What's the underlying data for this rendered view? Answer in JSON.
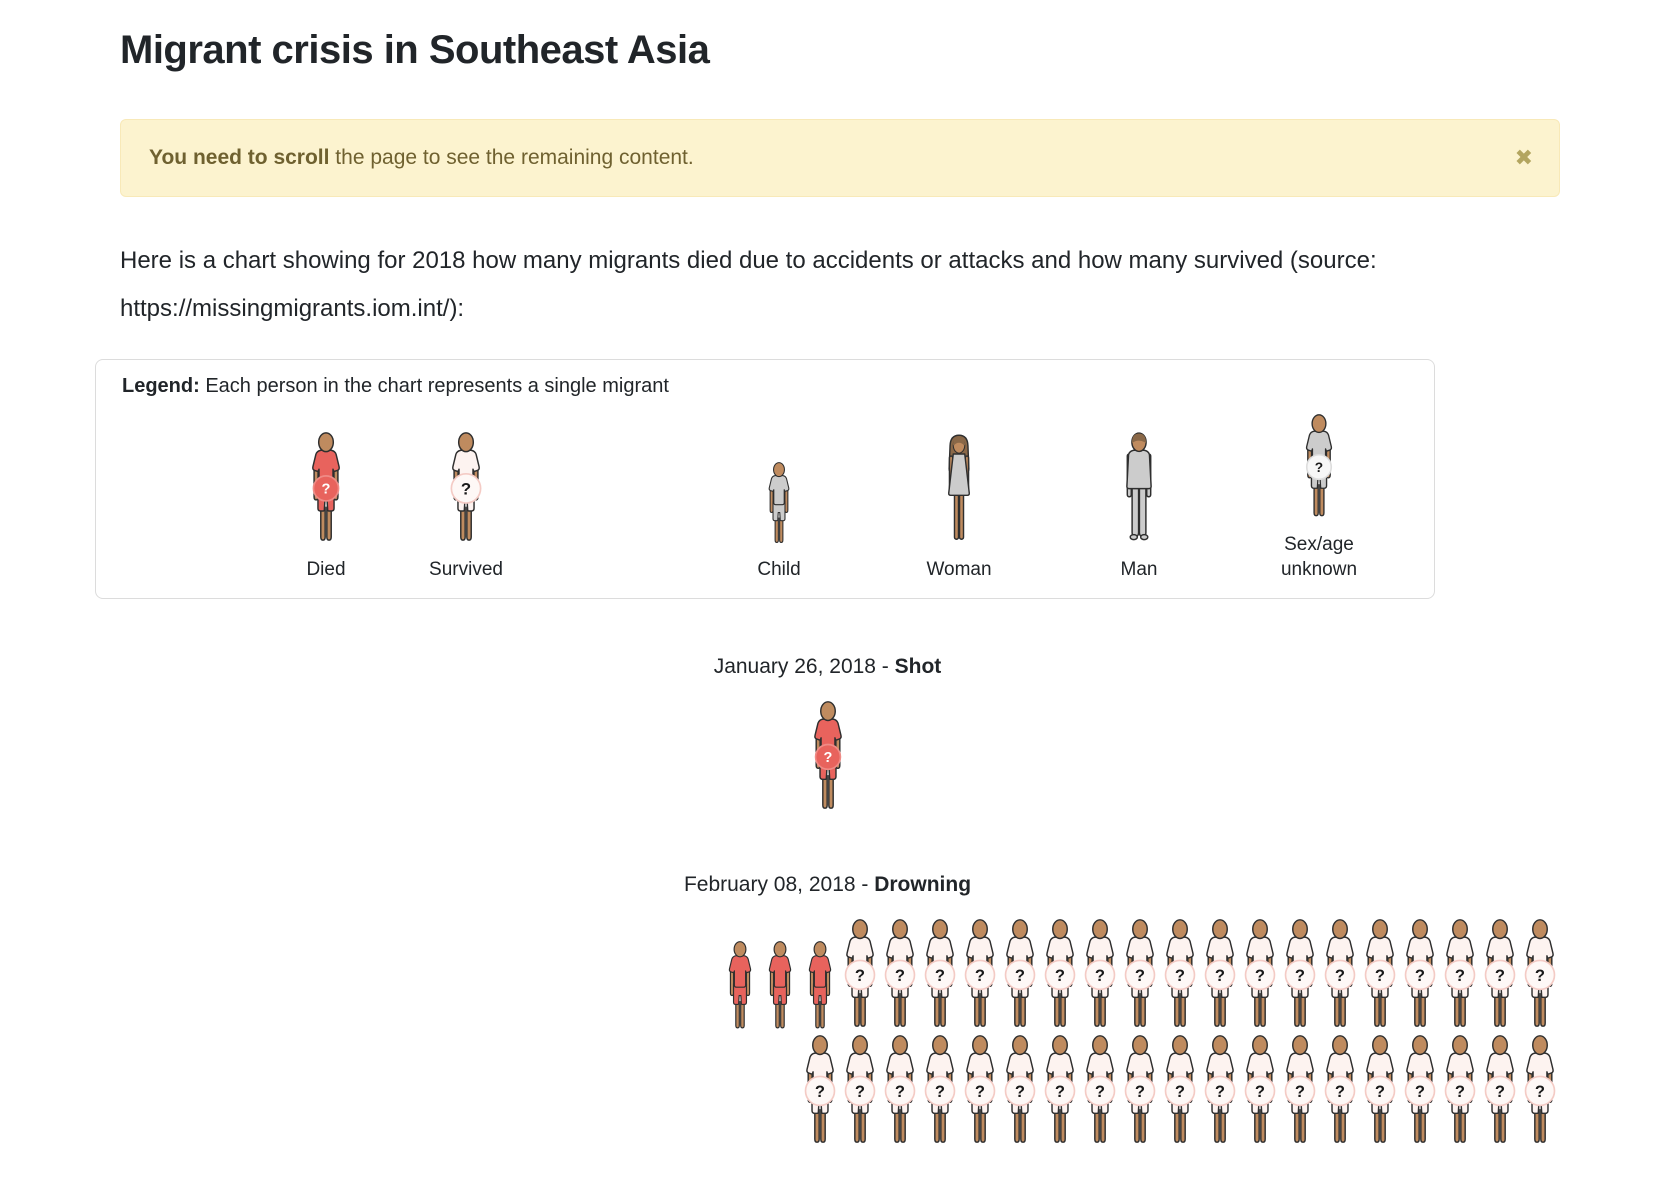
{
  "page": {
    "title": "Migrant crisis in Southeast Asia"
  },
  "alert": {
    "bold_text": "You need to scroll",
    "rest_text": " the page to see the remaining content.",
    "close_label": "✖"
  },
  "intro": "Here is a chart showing for 2018 how many migrants died due to accidents or attacks and how many survived (source: https://missingmigrants.iom.int/):",
  "legend": {
    "label": "Legend:",
    "description": "Each person in the chart represents a single migrant",
    "items": [
      {
        "label": "Died",
        "type": "died"
      },
      {
        "label": "Survived",
        "type": "survived"
      },
      {
        "label": "Child",
        "type": "child"
      },
      {
        "label": "Woman",
        "type": "woman"
      },
      {
        "label": "Man",
        "type": "man"
      },
      {
        "label": "Sex/age unknown",
        "type": "unknown"
      }
    ]
  },
  "chart_data": {
    "type": "pictogram",
    "unit": "1 person icon = 1 migrant",
    "year": 2018,
    "source": "https://missingmigrants.iom.int/",
    "events": [
      {
        "date": "January 26, 2018",
        "separator": " - ",
        "cause": "Shot",
        "align": "center",
        "icons": [
          {
            "type": "died",
            "count": 1
          }
        ],
        "died_total": 1,
        "survived_total_visible": 0
      },
      {
        "date": "February 08, 2018",
        "separator": " - ",
        "cause": "Drowning",
        "align": "right",
        "icons": [
          {
            "type": "died-child",
            "count": 3
          },
          {
            "type": "survived",
            "count": 37
          }
        ],
        "died_total": 3,
        "survived_total_visible": 37,
        "note": "survivor icons continue below the visible page fold"
      }
    ]
  },
  "colors": {
    "text": "#212529",
    "alert_bg": "#fcf3cf",
    "alert_border": "#f8e9b8",
    "alert_text": "#6f6130",
    "legend_border": "#dcdcdc",
    "accent_died": "#e8635d",
    "died_badge_ring": "#ef8b86",
    "survived_cloth": "#fdf3f0",
    "survived_badge_fill": "#fef8f6",
    "survived_badge_ring": "#f4cbc5",
    "neutral_cloth": "#cccccc",
    "unknown_badge_fill": "#f7f7f7",
    "unknown_badge_ring": "#dddddd",
    "skin": "#bf8b5f",
    "hair": "#8a6848",
    "outline": "#2f2f2f"
  }
}
